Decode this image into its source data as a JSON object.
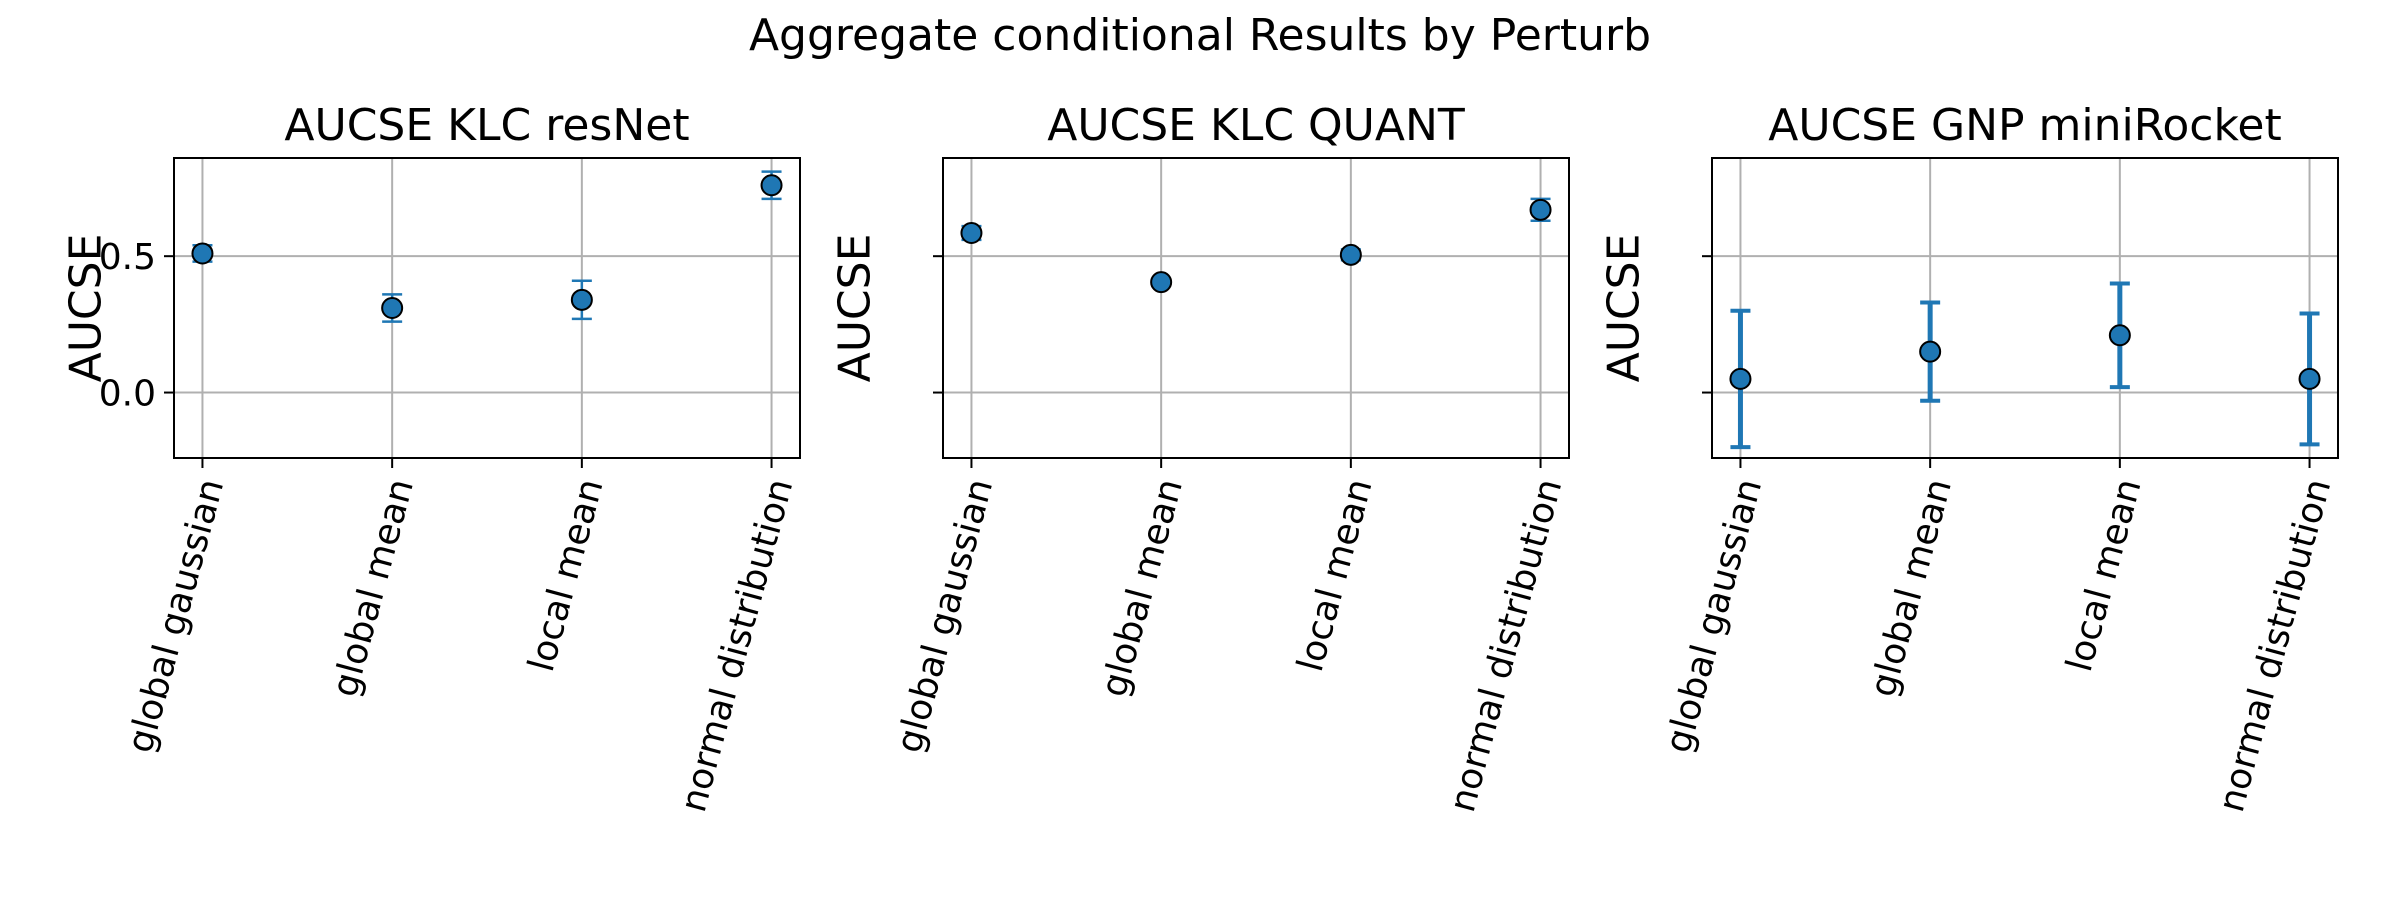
{
  "figure": {
    "title": "Aggregate conditional Results by Perturb"
  },
  "chart_data": [
    {
      "type": "scatter",
      "title": "AUCSE KLC resNet",
      "xlabel": "",
      "ylabel": "AUCSE",
      "categories": [
        "global gaussian",
        "global mean",
        "local mean",
        "normal distribution"
      ],
      "values": [
        0.51,
        0.31,
        0.34,
        0.76
      ],
      "errors": [
        0.03,
        0.05,
        0.07,
        0.05
      ],
      "ylim": [
        -0.24,
        0.86
      ],
      "yticks": [
        0.0,
        0.5
      ],
      "ytick_labels": [
        "0.0",
        "0.5"
      ],
      "grid": true,
      "marker_color": "#1f77b4",
      "error_color": "#1f77b4"
    },
    {
      "type": "scatter",
      "title": "AUCSE KLC QUANT",
      "xlabel": "",
      "ylabel": "AUCSE",
      "categories": [
        "global gaussian",
        "global mean",
        "local mean",
        "normal distribution"
      ],
      "values": [
        0.585,
        0.405,
        0.505,
        0.67
      ],
      "errors": [
        0.025,
        0.01,
        0.02,
        0.04
      ],
      "ylim": [
        -0.24,
        0.86
      ],
      "yticks": [
        0.0,
        0.5
      ],
      "ytick_labels": [
        "",
        ""
      ],
      "grid": true,
      "marker_color": "#1f77b4",
      "error_color": "#1f77b4"
    },
    {
      "type": "scatter",
      "title": "AUCSE GNP miniRocket",
      "xlabel": "",
      "ylabel": "AUCSE",
      "categories": [
        "global gaussian",
        "global mean",
        "local mean",
        "normal distribution"
      ],
      "values": [
        0.05,
        0.15,
        0.21,
        0.05
      ],
      "errors": [
        0.25,
        0.18,
        0.19,
        0.24
      ],
      "ylim": [
        -0.24,
        0.86
      ],
      "yticks": [
        0.0,
        0.5
      ],
      "ytick_labels": [
        "",
        ""
      ],
      "grid": true,
      "marker_color": "#1f77b4",
      "error_color": "#1f77b4"
    }
  ]
}
